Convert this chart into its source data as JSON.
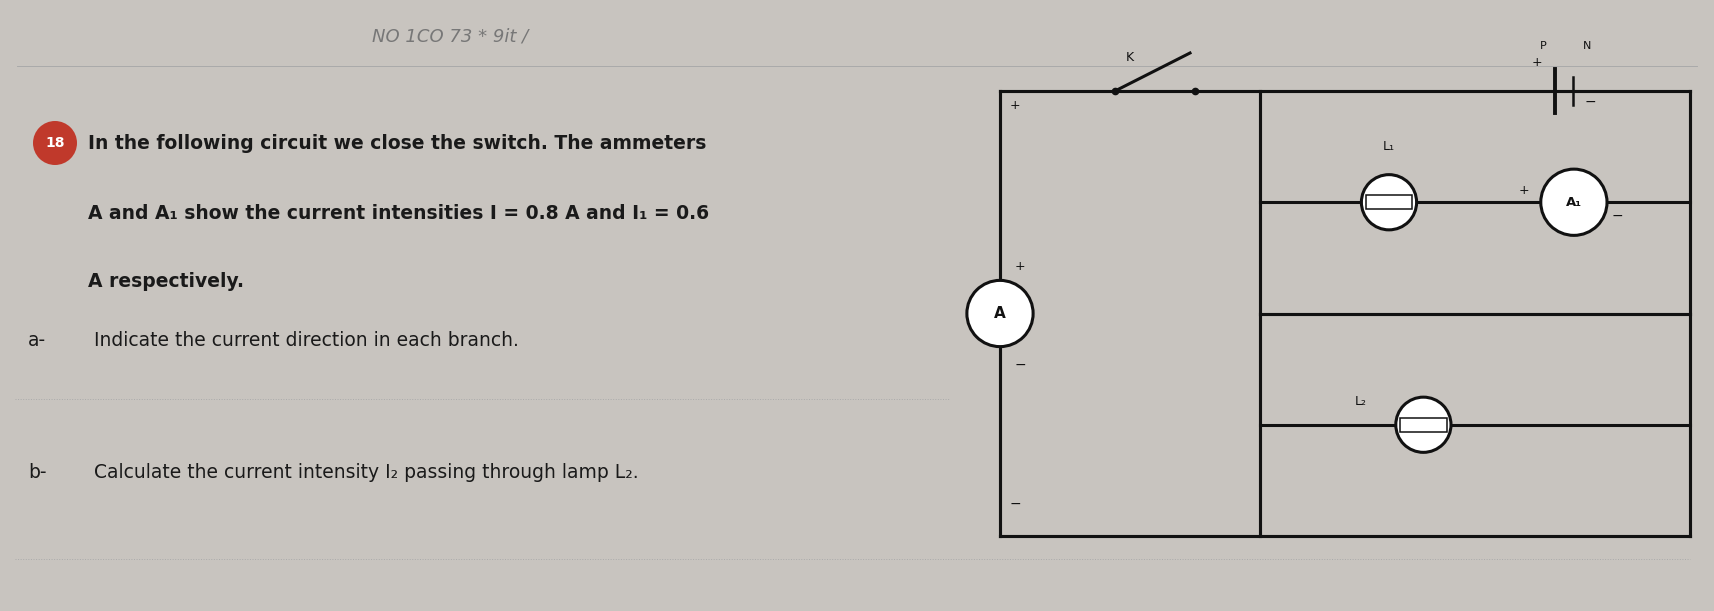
{
  "bg_color": "#c8c4bf",
  "paper_color": "#dedad5",
  "text_color": "#1a1a1a",
  "title_num": "18",
  "title_num_bg": "#c0392b",
  "title_num_color": "#ffffff",
  "line1": "In the following circuit we close the switch. The ammeters",
  "line2": "A and A₁ show the current intensities I = 0.8 A and I₁ = 0.6",
  "line3": "A respectively.",
  "qa_label": "a-",
  "qa_text": " Indicate the current direction in each branch.",
  "qb_label": "b-",
  "qb_text": " Calculate the current intensity I₂ passing through lamp L₂.",
  "handwriting": "NO 1CO 73 * 9it /",
  "lw": 2.2,
  "line_color": "#111111",
  "ammeter_r": 0.048,
  "lamp_r": 0.04
}
